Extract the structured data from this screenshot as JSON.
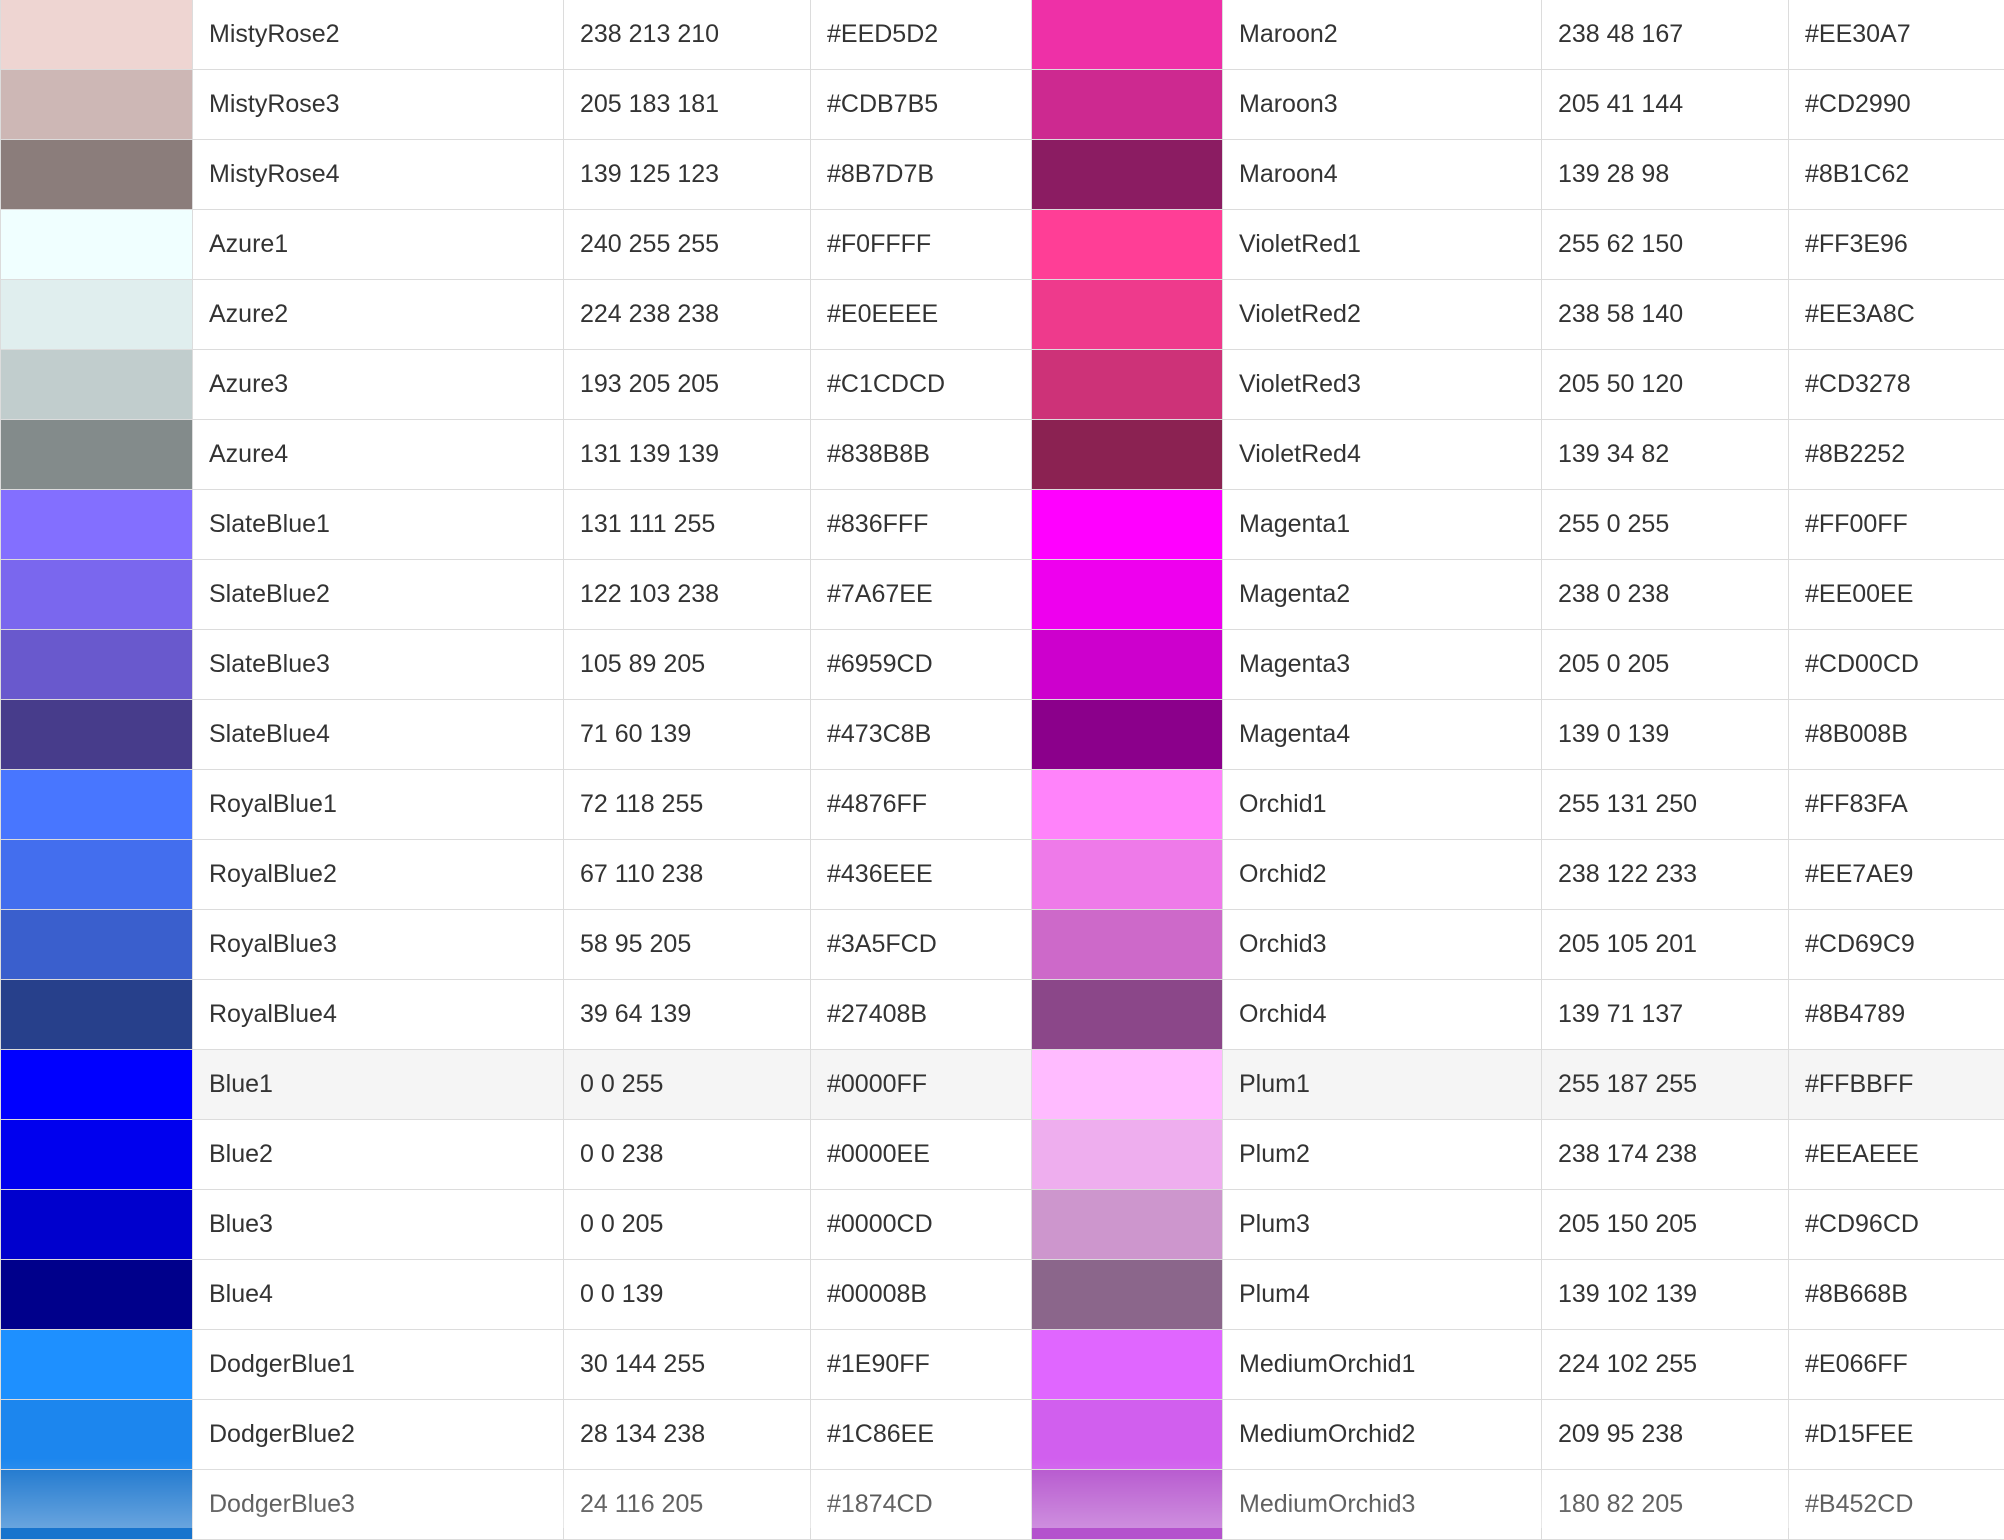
{
  "rows": [
    [
      {
        "name": "MistyRose2",
        "rgb": "238 213 210",
        "hex": "#EED5D2"
      },
      {
        "name": "Maroon2",
        "rgb": "238 48 167",
        "hex": "#EE30A7"
      }
    ],
    [
      {
        "name": "MistyRose3",
        "rgb": "205 183 181",
        "hex": "#CDB7B5"
      },
      {
        "name": "Maroon3",
        "rgb": "205 41 144",
        "hex": "#CD2990"
      }
    ],
    [
      {
        "name": "MistyRose4",
        "rgb": "139 125 123",
        "hex": "#8B7D7B"
      },
      {
        "name": "Maroon4",
        "rgb": "139 28 98",
        "hex": "#8B1C62"
      }
    ],
    [
      {
        "name": "Azure1",
        "rgb": "240 255 255",
        "hex": "#F0FFFF"
      },
      {
        "name": "VioletRed1",
        "rgb": "255 62 150",
        "hex": "#FF3E96"
      }
    ],
    [
      {
        "name": "Azure2",
        "rgb": "224 238 238",
        "hex": "#E0EEEE"
      },
      {
        "name": "VioletRed2",
        "rgb": "238 58 140",
        "hex": "#EE3A8C"
      }
    ],
    [
      {
        "name": "Azure3",
        "rgb": "193 205 205",
        "hex": "#C1CDCD"
      },
      {
        "name": "VioletRed3",
        "rgb": "205 50 120",
        "hex": "#CD3278"
      }
    ],
    [
      {
        "name": "Azure4",
        "rgb": "131 139 139",
        "hex": "#838B8B"
      },
      {
        "name": "VioletRed4",
        "rgb": "139 34 82",
        "hex": "#8B2252"
      }
    ],
    [
      {
        "name": "SlateBlue1",
        "rgb": "131 111 255",
        "hex": "#836FFF"
      },
      {
        "name": "Magenta1",
        "rgb": "255 0 255",
        "hex": "#FF00FF"
      }
    ],
    [
      {
        "name": "SlateBlue2",
        "rgb": "122 103 238",
        "hex": "#7A67EE"
      },
      {
        "name": "Magenta2",
        "rgb": "238 0 238",
        "hex": "#EE00EE"
      }
    ],
    [
      {
        "name": "SlateBlue3",
        "rgb": "105 89 205",
        "hex": "#6959CD"
      },
      {
        "name": "Magenta3",
        "rgb": "205 0 205",
        "hex": "#CD00CD"
      }
    ],
    [
      {
        "name": "SlateBlue4",
        "rgb": "71 60 139",
        "hex": "#473C8B"
      },
      {
        "name": "Magenta4",
        "rgb": "139 0 139",
        "hex": "#8B008B"
      }
    ],
    [
      {
        "name": "RoyalBlue1",
        "rgb": "72 118 255",
        "hex": "#4876FF"
      },
      {
        "name": "Orchid1",
        "rgb": "255 131 250",
        "hex": "#FF83FA"
      }
    ],
    [
      {
        "name": "RoyalBlue2",
        "rgb": "67 110 238",
        "hex": "#436EEE"
      },
      {
        "name": "Orchid2",
        "rgb": "238 122 233",
        "hex": "#EE7AE9"
      }
    ],
    [
      {
        "name": "RoyalBlue3",
        "rgb": "58 95 205",
        "hex": "#3A5FCD"
      },
      {
        "name": "Orchid3",
        "rgb": "205 105 201",
        "hex": "#CD69C9"
      }
    ],
    [
      {
        "name": "RoyalBlue4",
        "rgb": "39 64 139",
        "hex": "#27408B"
      },
      {
        "name": "Orchid4",
        "rgb": "139 71 137",
        "hex": "#8B4789"
      }
    ],
    [
      {
        "name": "Blue1",
        "rgb": "0 0 255",
        "hex": "#0000FF"
      },
      {
        "name": "Plum1",
        "rgb": "255 187 255",
        "hex": "#FFBBFF"
      }
    ],
    [
      {
        "name": "Blue2",
        "rgb": "0 0 238",
        "hex": "#0000EE"
      },
      {
        "name": "Plum2",
        "rgb": "238 174 238",
        "hex": "#EEAEEE"
      }
    ],
    [
      {
        "name": "Blue3",
        "rgb": "0 0 205",
        "hex": "#0000CD"
      },
      {
        "name": "Plum3",
        "rgb": "205 150 205",
        "hex": "#CD96CD"
      }
    ],
    [
      {
        "name": "Blue4",
        "rgb": "0 0 139",
        "hex": "#00008B"
      },
      {
        "name": "Plum4",
        "rgb": "139 102 139",
        "hex": "#8B668B"
      }
    ],
    [
      {
        "name": "DodgerBlue1",
        "rgb": "30 144 255",
        "hex": "#1E90FF"
      },
      {
        "name": "MediumOrchid1",
        "rgb": "224 102 255",
        "hex": "#E066FF"
      }
    ],
    [
      {
        "name": "DodgerBlue2",
        "rgb": "28 134 238",
        "hex": "#1C86EE"
      },
      {
        "name": "MediumOrchid2",
        "rgb": "209 95 238",
        "hex": "#D15FEE"
      }
    ],
    [
      {
        "name": "DodgerBlue3",
        "rgb": "24 116 205",
        "hex": "#1874CD"
      },
      {
        "name": "MediumOrchid3",
        "rgb": "180 82 205",
        "hex": "#B452CD"
      }
    ]
  ],
  "highlighted_row": 15
}
